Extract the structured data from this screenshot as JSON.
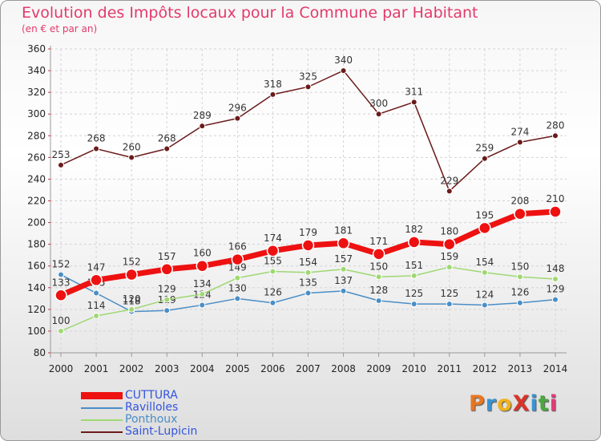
{
  "title": "Evolution des Impôts locaux pour la Commune par Habitant",
  "subtitle": "(en € et par an)",
  "logo": {
    "text": "ProXiti",
    "colors": [
      "#e87722",
      "#3a93d3",
      "#f2b21a",
      "#d9342b",
      "#3a93d3",
      "#4aa83e",
      "#e23b74"
    ]
  },
  "chart_data": {
    "type": "line",
    "x": [
      "2000",
      "2001",
      "2002",
      "2003",
      "2004",
      "2005",
      "2006",
      "2007",
      "2008",
      "2009",
      "2010",
      "2011",
      "2012",
      "2013",
      "2014"
    ],
    "ylim": [
      80,
      360
    ],
    "yticks": [
      80,
      100,
      120,
      140,
      160,
      180,
      200,
      220,
      240,
      260,
      280,
      300,
      320,
      340,
      360
    ],
    "grid": true,
    "legend_position": "bottom-left",
    "series": [
      {
        "name": "Saint-Lupicin",
        "color": "#6b1a1a",
        "values": [
          253,
          268,
          260,
          268,
          289,
          296,
          318,
          325,
          340,
          300,
          311,
          229,
          259,
          274,
          280
        ]
      },
      {
        "name": "Ravilloles",
        "color": "#4a8ec6",
        "values": [
          152,
          135,
          118,
          119,
          124,
          130,
          126,
          135,
          137,
          128,
          125,
          125,
          124,
          126,
          129
        ]
      },
      {
        "name": "Ponthoux",
        "color": "#9fd873",
        "values": [
          100,
          114,
          120,
          129,
          134,
          149,
          155,
          154,
          157,
          150,
          151,
          159,
          154,
          150,
          148
        ]
      },
      {
        "name": "CUTTURA",
        "color": "#ee1111",
        "values": [
          133,
          147,
          152,
          157,
          160,
          166,
          174,
          179,
          181,
          171,
          182,
          180,
          195,
          208,
          210
        ]
      }
    ],
    "legend": [
      "CUTTURA",
      "Ravilloles",
      "Ponthoux",
      "Saint-Lupicin"
    ]
  }
}
